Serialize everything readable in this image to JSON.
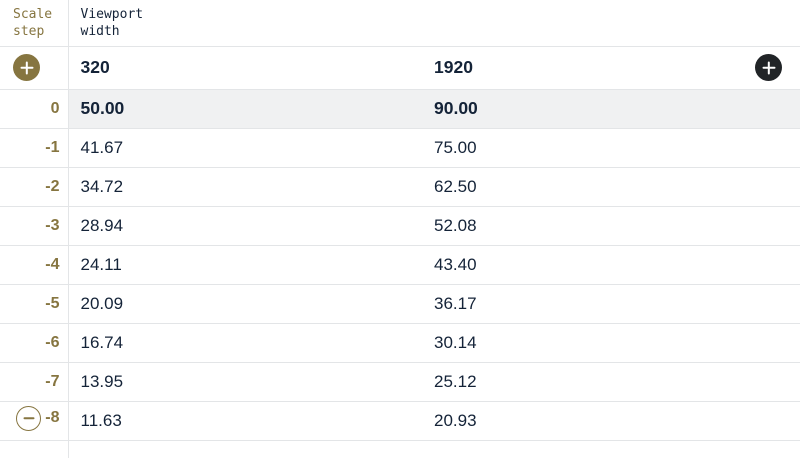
{
  "header": {
    "scale_step_label": "Scale step",
    "viewport_width_label": "Viewport width"
  },
  "viewport_row": {
    "min_width": "320",
    "max_width": "1920"
  },
  "table": {
    "rows": [
      {
        "step": "0",
        "min": "50.00",
        "max": "90.00",
        "current": true
      },
      {
        "step": "-1",
        "min": "41.67",
        "max": "75.00"
      },
      {
        "step": "-2",
        "min": "34.72",
        "max": "62.50"
      },
      {
        "step": "-3",
        "min": "28.94",
        "max": "52.08"
      },
      {
        "step": "-4",
        "min": "24.11",
        "max": "43.40"
      },
      {
        "step": "-5",
        "min": "20.09",
        "max": "36.17"
      },
      {
        "step": "-6",
        "min": "16.74",
        "max": "30.14"
      },
      {
        "step": "-7",
        "min": "13.95",
        "max": "25.12"
      },
      {
        "step": "-8",
        "min": "11.63",
        "max": "20.93"
      }
    ]
  },
  "icons": {
    "add_step_button": "plus-icon",
    "add_viewport_button": "plus-icon",
    "remove_step_button": "minus-icon"
  },
  "colors": {
    "accent_gold": "#867540",
    "text_navy": "#142338",
    "row_border": "#e3e5e7",
    "current_row_highlight": "#f0f1f2",
    "dark_button": "#212427"
  }
}
